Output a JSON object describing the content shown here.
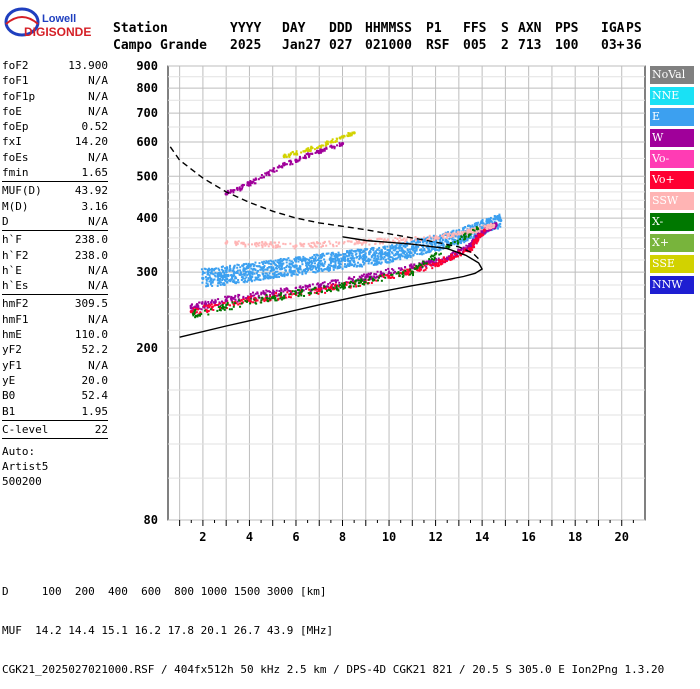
{
  "logo": {
    "line1": "Lowell",
    "line2": "DIGISONDE"
  },
  "header": {
    "labels": [
      "Station",
      "YYYY",
      "DAY",
      "DDD",
      "HHMMSS",
      "P1",
      "FFS",
      "S",
      "AXN",
      "PPS",
      "IGA",
      "PS"
    ],
    "values": [
      "Campo Grande",
      "2025",
      "Jan27",
      "027",
      "021000",
      "RSF",
      "005",
      "2",
      "713",
      "100",
      "03+",
      "36"
    ]
  },
  "params_group1": [
    {
      "label": "foF2",
      "value": "13.900"
    },
    {
      "label": "foF1",
      "value": "N/A"
    },
    {
      "label": "foF1p",
      "value": "N/A"
    },
    {
      "label": "foE",
      "value": "N/A"
    },
    {
      "label": "foEp",
      "value": "0.52"
    },
    {
      "label": "fxI",
      "value": "14.20"
    },
    {
      "label": "foEs",
      "value": "N/A"
    },
    {
      "label": "fmin",
      "value": "1.65"
    }
  ],
  "params_group2": [
    {
      "label": "MUF(D)",
      "value": "43.92"
    },
    {
      "label": "M(D)",
      "value": "3.16"
    },
    {
      "label": "D",
      "value": "N/A"
    }
  ],
  "params_group3": [
    {
      "label": "h`F",
      "value": "238.0"
    },
    {
      "label": "h`F2",
      "value": "238.0"
    },
    {
      "label": "h`E",
      "value": "N/A"
    },
    {
      "label": "h`Es",
      "value": "N/A"
    }
  ],
  "params_group4": [
    {
      "label": "hmF2",
      "value": "309.5"
    },
    {
      "label": "hmF1",
      "value": "N/A"
    },
    {
      "label": "hmE",
      "value": "110.0"
    },
    {
      "label": "yF2",
      "value": "52.2"
    },
    {
      "label": "yF1",
      "value": "N/A"
    },
    {
      "label": "yE",
      "value": "20.0"
    },
    {
      "label": "B0",
      "value": "52.4"
    },
    {
      "label": "B1",
      "value": "1.95"
    }
  ],
  "clevel": {
    "label": "C-level",
    "value": "22"
  },
  "auto_lines": [
    "Auto:",
    "Artist5",
    "500200"
  ],
  "legend": [
    {
      "label": "NoVal",
      "color": "#808080"
    },
    {
      "label": "NNE",
      "color": "#19e1f5"
    },
    {
      "label": "E",
      "color": "#3ca0f0"
    },
    {
      "label": "W",
      "color": "#a0009a"
    },
    {
      "label": "Vo-",
      "color": "#ff3cb4"
    },
    {
      "label": "Vo+",
      "color": "#ff0032"
    },
    {
      "label": "SSW",
      "color": "#ffb4b4"
    },
    {
      "label": "X-",
      "color": "#007800"
    },
    {
      "label": "X+",
      "color": "#78b43c"
    },
    {
      "label": "SSE",
      "color": "#d2d200"
    },
    {
      "label": "NNW",
      "color": "#1e1ed2"
    }
  ],
  "footer": {
    "line1": "D     100  200  400  600  800 1000 1500 3000 [km]",
    "line2": "MUF  14.2 14.4 15.1 16.2 17.8 20.1 26.7 43.9 [MHz]",
    "line3": "CGK21_2025027021000.RSF / 404fx512h 50 kHz 2.5 km / DPS-4D CGK21 821 / 20.5 S 305.0 E Ion2Png 1.3.20"
  },
  "chart_data": {
    "type": "scatter",
    "title": "",
    "xlabel": "",
    "ylabel": "",
    "xlim": [
      0.5,
      21.0
    ],
    "ylim": [
      80,
      900
    ],
    "x_ticks": [
      "2",
      "4",
      "6",
      "8",
      "10",
      "12",
      "14",
      "16",
      "18",
      "20"
    ],
    "y_ticks": [
      "80",
      "200",
      "300",
      "400",
      "500",
      "600",
      "700",
      "800",
      "900"
    ],
    "y_scale": "log",
    "grid": true,
    "legend_position": "right",
    "series": [
      {
        "color": "#3ca0f0",
        "points": [
          [
            2.0,
            290
          ],
          [
            3.0,
            295
          ],
          [
            4.0,
            300
          ],
          [
            5.0,
            305
          ],
          [
            6.0,
            310
          ],
          [
            7.0,
            315
          ],
          [
            8.0,
            320
          ],
          [
            9.0,
            325
          ],
          [
            10.0,
            330
          ],
          [
            11.0,
            340
          ],
          [
            12.0,
            350
          ],
          [
            13.0,
            362
          ],
          [
            14.0,
            380
          ],
          [
            14.8,
            395
          ]
        ]
      },
      {
        "color": "#a0009a",
        "points": [
          [
            1.5,
            248
          ],
          [
            3.0,
            258
          ],
          [
            5.0,
            268
          ],
          [
            7.0,
            278
          ],
          [
            9.0,
            292
          ],
          [
            11.0,
            308
          ],
          [
            12.5,
            322
          ],
          [
            13.5,
            345
          ],
          [
            14.0,
            372
          ],
          [
            14.6,
            385
          ]
        ]
      },
      {
        "color": "#ff0032",
        "points": [
          [
            1.5,
            243
          ],
          [
            4.0,
            258
          ],
          [
            7.0,
            272
          ],
          [
            10.0,
            292
          ],
          [
            12.0,
            312
          ],
          [
            13.5,
            340
          ],
          [
            14.1,
            375
          ]
        ]
      },
      {
        "color": "#ffb4b4",
        "points": [
          [
            3.0,
            350
          ],
          [
            6.0,
            345
          ],
          [
            9.0,
            352
          ],
          [
            12.0,
            360
          ],
          [
            13.5,
            372
          ],
          [
            14.5,
            385
          ]
        ]
      },
      {
        "color": "#007800",
        "points": [
          [
            1.6,
            240
          ],
          [
            5.0,
            262
          ],
          [
            8.0,
            278
          ],
          [
            11.0,
            300
          ],
          [
            13.8,
            378
          ]
        ]
      },
      {
        "color": "#a0009a",
        "points": [
          [
            3.0,
            455
          ],
          [
            4.0,
            480
          ],
          [
            5.0,
            515
          ],
          [
            6.0,
            545
          ],
          [
            7.0,
            570
          ],
          [
            8.0,
            595
          ]
        ]
      },
      {
        "color": "#d2d200",
        "points": [
          [
            5.5,
            555
          ],
          [
            6.5,
            575
          ],
          [
            7.5,
            600
          ],
          [
            8.5,
            630
          ]
        ]
      }
    ],
    "o_trace": {
      "color": "#000000",
      "dash": false,
      "points": [
        [
          1.0,
          212
        ],
        [
          3.0,
          225
        ],
        [
          5.0,
          238
        ],
        [
          7.0,
          252
        ],
        [
          9.0,
          266
        ],
        [
          11.0,
          279
        ],
        [
          12.5,
          288
        ],
        [
          13.2,
          293
        ],
        [
          13.7,
          298
        ],
        [
          14.0,
          305
        ],
        [
          13.85,
          315
        ],
        [
          13.3,
          328
        ],
        [
          12.5,
          340
        ],
        [
          11.0,
          348
        ],
        [
          9.0,
          355
        ],
        [
          8.0,
          362
        ]
      ]
    },
    "profile": {
      "color": "#000000",
      "dash": true,
      "points": [
        [
          0.6,
          585
        ],
        [
          1.0,
          545
        ],
        [
          2.0,
          495
        ],
        [
          3.0,
          460
        ],
        [
          4.0,
          435
        ],
        [
          5.0,
          415
        ],
        [
          6.0,
          400
        ],
        [
          7.0,
          390
        ],
        [
          8.0,
          383
        ],
        [
          9.0,
          376
        ],
        [
          10.0,
          368
        ],
        [
          11.0,
          360
        ],
        [
          12.0,
          352
        ],
        [
          13.0,
          343
        ],
        [
          13.6,
          332
        ],
        [
          13.9,
          320
        ]
      ]
    }
  }
}
